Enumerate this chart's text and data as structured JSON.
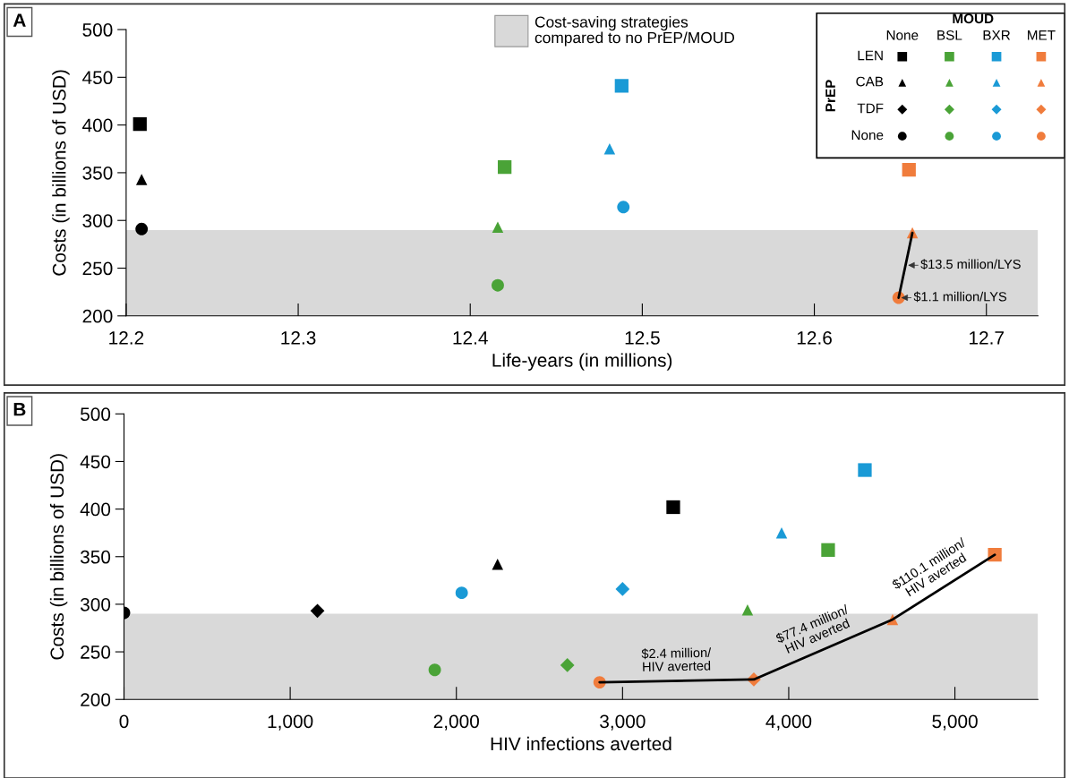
{
  "chart_data": [
    {
      "type": "scatter",
      "title": "A",
      "xlabel": "Life-years (in millions)",
      "ylabel": "Costs (in billions of USD)",
      "xlim": [
        12.2,
        12.73
      ],
      "ylim": [
        200,
        500
      ],
      "xticks": [
        12.2,
        12.3,
        12.4,
        12.5,
        12.6,
        12.7
      ],
      "yticks": [
        200,
        250,
        300,
        350,
        400,
        450,
        500
      ],
      "grid": false,
      "legend": "top right",
      "bands": [
        {
          "axis": "y",
          "from": 200,
          "to": 290,
          "label": "Cost-saving strategies\ncompared to no PrEP/MOUD",
          "color": "#d9d9d9"
        }
      ],
      "annotations": [
        "MOUD",
        "None",
        "BSL",
        "BXR",
        "MET",
        "PrEP",
        "LEN",
        "CAB",
        "TDF",
        "None",
        {
          "text": "$13.5 million/LYS",
          "x": 12.653,
          "y": 253
        },
        {
          "text": "$1.1 million/LYS",
          "x": 12.649,
          "y": 219
        }
      ],
      "series": [
        {
          "marker": "square",
          "color": "#000000",
          "x": [
            12.208
          ],
          "values": [
            401
          ]
        },
        {
          "marker": "square",
          "color": "#4aa337",
          "x": [
            12.42
          ],
          "values": [
            356
          ]
        },
        {
          "marker": "square",
          "color": "#1a9ad6",
          "x": [
            12.488
          ],
          "values": [
            441
          ]
        },
        {
          "marker": "square",
          "color": "#f07c3c",
          "x": [
            12.655
          ],
          "values": [
            353
          ]
        },
        {
          "marker": "triangle",
          "color": "#000000",
          "x": [
            12.209
          ],
          "values": [
            343
          ]
        },
        {
          "marker": "triangle",
          "color": "#4aa337",
          "x": [
            12.416
          ],
          "values": [
            293
          ]
        },
        {
          "marker": "triangle",
          "color": "#1a9ad6",
          "x": [
            12.481
          ],
          "values": [
            375
          ]
        },
        {
          "marker": "triangle",
          "color": "#f07c3c",
          "x": [
            12.657
          ],
          "values": [
            287
          ]
        },
        {
          "marker": "diamond",
          "color": "#000000",
          "x": [
            null
          ],
          "values": [
            null
          ]
        },
        {
          "marker": "diamond",
          "color": "#4aa337",
          "x": [
            null
          ],
          "values": [
            null
          ]
        },
        {
          "marker": "diamond",
          "color": "#1a9ad6",
          "x": [
            null
          ],
          "values": [
            null
          ]
        },
        {
          "marker": "diamond",
          "color": "#f07c3c",
          "x": [
            null
          ],
          "values": [
            null
          ]
        },
        {
          "marker": "circle",
          "color": "#000000",
          "x": [
            12.209
          ],
          "values": [
            291
          ]
        },
        {
          "marker": "circle",
          "color": "#4aa337",
          "x": [
            12.416
          ],
          "values": [
            232
          ]
        },
        {
          "marker": "circle",
          "color": "#1a9ad6",
          "x": [
            12.489
          ],
          "values": [
            314
          ]
        },
        {
          "marker": "circle",
          "color": "#f07c3c",
          "x": [
            12.649
          ],
          "values": [
            219
          ]
        },
        {
          "type": "line",
          "marker": "none",
          "color": "#000000",
          "x": [
            12.649,
            12.657
          ],
          "values": [
            219,
            287
          ]
        }
      ]
    },
    {
      "type": "scatter",
      "title": "B",
      "xlabel": "HIV infections averted",
      "ylabel": "Costs (in billions of USD)",
      "xlim": [
        0,
        5500
      ],
      "ylim": [
        200,
        500
      ],
      "xticks": [
        0,
        {
          "value": 1000,
          "label": "1,000"
        },
        {
          "value": 2000,
          "label": "2,000"
        },
        {
          "value": 3000,
          "label": "3,000"
        },
        {
          "value": 4000,
          "label": "4,000"
        },
        {
          "value": 5000,
          "label": "5,000"
        }
      ],
      "yticks": [
        200,
        250,
        300,
        350,
        400,
        450,
        500
      ],
      "grid": false,
      "bands": [
        {
          "axis": "y",
          "from": 200,
          "to": 290,
          "color": "#d9d9d9"
        }
      ],
      "annotations": [
        {
          "text": "$2.4 million/\nHIV averted",
          "x": 3326,
          "y": 219.5
        },
        {
          "text": "$77.4 million/\nHIV averted",
          "x": 4207,
          "y": 252.5
        },
        {
          "text": "$110.1 million/\nHIV averted",
          "x": 4932,
          "y": 318
        }
      ],
      "series": [
        {
          "marker": "square",
          "color": "#000000",
          "x": [
            3305
          ],
          "values": [
            402
          ]
        },
        {
          "marker": "square",
          "color": "#4aa337",
          "x": [
            4237
          ],
          "values": [
            357
          ]
        },
        {
          "marker": "square",
          "color": "#1a9ad6",
          "x": [
            4458
          ],
          "values": [
            441
          ]
        },
        {
          "marker": "square",
          "color": "#f07c3c",
          "x": [
            5240
          ],
          "values": [
            352
          ]
        },
        {
          "marker": "triangle",
          "color": "#000000",
          "x": [
            2248
          ],
          "values": [
            342
          ]
        },
        {
          "marker": "triangle",
          "color": "#4aa337",
          "x": [
            3752
          ],
          "values": [
            294
          ]
        },
        {
          "marker": "triangle",
          "color": "#1a9ad6",
          "x": [
            3957
          ],
          "values": [
            375
          ]
        },
        {
          "marker": "triangle",
          "color": "#f07c3c",
          "x": [
            4625
          ],
          "values": [
            284
          ]
        },
        {
          "marker": "diamond",
          "color": "#000000",
          "x": [
            1164
          ],
          "values": [
            293
          ]
        },
        {
          "marker": "diamond",
          "color": "#4aa337",
          "x": [
            2668
          ],
          "values": [
            236
          ]
        },
        {
          "marker": "diamond",
          "color": "#1a9ad6",
          "x": [
            3000
          ],
          "values": [
            316
          ]
        },
        {
          "marker": "diamond",
          "color": "#f07c3c",
          "x": [
            3790
          ],
          "values": [
            221
          ]
        },
        {
          "marker": "circle",
          "color": "#000000",
          "x": [
            0
          ],
          "values": [
            291
          ]
        },
        {
          "marker": "circle",
          "color": "#4aa337",
          "x": [
            1870
          ],
          "values": [
            231
          ]
        },
        {
          "marker": "circle",
          "color": "#1a9ad6",
          "x": [
            2032
          ],
          "values": [
            312
          ]
        },
        {
          "marker": "circle",
          "color": "#f07c3c",
          "x": [
            2862
          ],
          "values": [
            218
          ]
        },
        {
          "type": "line",
          "marker": "none",
          "color": "#000000",
          "x": [
            2862,
            3790,
            4625,
            5240
          ],
          "values": [
            218,
            221,
            284,
            352
          ]
        }
      ]
    }
  ]
}
